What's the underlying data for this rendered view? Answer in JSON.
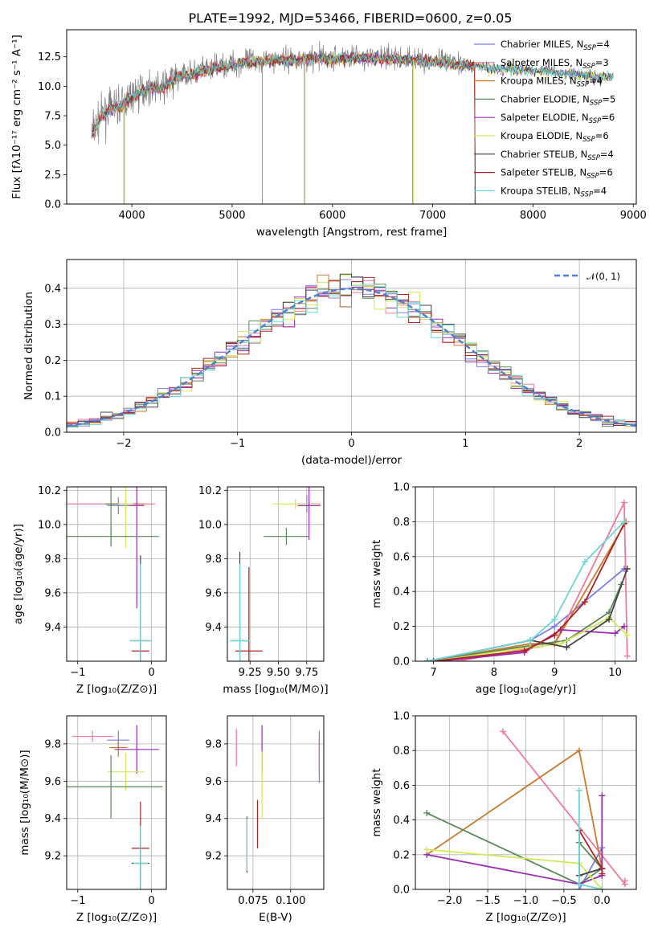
{
  "figure_title": "PLATE=1992, MJD=53466, FIBERID=0600, z=0.05",
  "colors": {
    "chabrier_miles": "#7b7ee6",
    "salpeter_miles": "#f07a9c",
    "kroupa_miles": "#c97b2f",
    "chabrier_elodie": "#5a8a5a",
    "salpeter_elodie": "#9b2bb5",
    "kroupa_elodie": "#d4e85a",
    "chabrier_stelib": "#444444",
    "salpeter_stelib": "#b22222",
    "kroupa_stelib": "#6fd6d6",
    "data": "#808080",
    "normal": "#4f7fd0"
  },
  "chart_data": [
    {
      "id": "spectrum",
      "type": "line",
      "xlabel": "wavelength [Angstrom, rest frame]",
      "ylabel": "Flux [fλ10⁻¹⁷ erg cm⁻² s⁻¹ A⁻¹]",
      "xlim": [
        3350,
        9030
      ],
      "ylim": [
        0,
        14.8
      ],
      "xticks": [
        "4000",
        "5000",
        "6000",
        "7000",
        "8000",
        "9000"
      ],
      "yticks": [
        "0.0",
        "2.5",
        "5.0",
        "7.5",
        "10.0",
        "12.5"
      ],
      "grid": false,
      "legend_position": "upper-right",
      "legend": [
        {
          "name": "Chabrier MILES, N",
          "sub": "SSP",
          "tail": "=4",
          "color_key": "chabrier_miles"
        },
        {
          "name": "Salpeter MILES, N",
          "sub": "SSP",
          "tail": "=3",
          "color_key": "salpeter_miles"
        },
        {
          "name": "Kroupa MILES, N",
          "sub": "SSP",
          "tail": "=4",
          "color_key": "kroupa_miles"
        },
        {
          "name": "Chabrier ELODIE, N",
          "sub": "SSP",
          "tail": "=5",
          "color_key": "chabrier_elodie"
        },
        {
          "name": "Salpeter ELODIE, N",
          "sub": "SSP",
          "tail": "=6",
          "color_key": "salpeter_elodie"
        },
        {
          "name": "Kroupa ELODIE, N",
          "sub": "SSP",
          "tail": "=6",
          "color_key": "kroupa_elodie"
        },
        {
          "name": "Chabrier STELIB, N",
          "sub": "SSP",
          "tail": "=4",
          "color_key": "chabrier_stelib"
        },
        {
          "name": "Salpeter STELIB, N",
          "sub": "SSP",
          "tail": "=6",
          "color_key": "salpeter_stelib"
        },
        {
          "name": "Kroupa STELIB, N",
          "sub": "SSP",
          "tail": "=4",
          "color_key": "kroupa_stelib"
        }
      ],
      "data_continuum": [
        [
          3600,
          6.0
        ],
        [
          3700,
          7.6
        ],
        [
          3800,
          8.2
        ],
        [
          3900,
          8.5
        ],
        [
          4000,
          9.2
        ],
        [
          4100,
          9.7
        ],
        [
          4200,
          10.0
        ],
        [
          4300,
          9.9
        ],
        [
          4400,
          10.5
        ],
        [
          4500,
          11.0
        ],
        [
          4600,
          11.1
        ],
        [
          4800,
          11.6
        ],
        [
          5000,
          11.9
        ],
        [
          5200,
          12.2
        ],
        [
          5400,
          12.3
        ],
        [
          5600,
          12.3
        ],
        [
          5800,
          12.4
        ],
        [
          6000,
          12.4
        ],
        [
          6200,
          12.5
        ],
        [
          6400,
          12.5
        ],
        [
          6600,
          12.4
        ],
        [
          6800,
          12.3
        ],
        [
          7000,
          12.2
        ],
        [
          7200,
          12.0
        ],
        [
          7400,
          11.8
        ],
        [
          7600,
          11.6
        ],
        [
          7800,
          11.5
        ],
        [
          8000,
          11.4
        ],
        [
          8200,
          11.3
        ],
        [
          8400,
          11.1
        ],
        [
          8600,
          10.9
        ],
        [
          8800,
          10.8
        ]
      ],
      "models_end_near": [
        7420,
        8800
      ],
      "absorption_spikes": [
        [
          3920,
          0.0
        ],
        [
          5300,
          0.0
        ],
        [
          5720,
          0.0
        ],
        [
          6800,
          0.0
        ],
        [
          7420,
          0.0
        ]
      ]
    },
    {
      "id": "residuals",
      "type": "histogram",
      "xlabel": "(data-model)/error",
      "ylabel": "Normed distribution",
      "xlim": [
        -2.5,
        2.5
      ],
      "ylim": [
        0,
        0.48
      ],
      "xticks": [
        "−2",
        "−1",
        "0",
        "1",
        "2"
      ],
      "yticks": [
        "0.0",
        "0.1",
        "0.2",
        "0.3",
        "0.4"
      ],
      "grid": true,
      "legend_position": "upper-right",
      "normal_label": "𝒩(0, 1)",
      "bin_edges_start": -2.5,
      "bin_width": 0.1,
      "normal_curve": {
        "mu": 0,
        "sigma": 1
      }
    },
    {
      "id": "age_vs_Z",
      "type": "errorbar",
      "xlabel": "Z [log₁₀(Z/Z⊙)]",
      "ylabel": "age  [log₁₀(age/yr)]",
      "xlim": [
        -1.15,
        0.2
      ],
      "ylim": [
        9.2,
        10.22
      ],
      "xticks": [
        "−1",
        "0"
      ],
      "xtick_values": [
        -1,
        0
      ],
      "yticks": [
        "9.4",
        "9.6",
        "9.8",
        "10.0",
        "10.2"
      ],
      "ytick_values": [
        9.4,
        9.6,
        9.8,
        10.0,
        10.2
      ],
      "grid": true,
      "points": [
        {
          "x": -0.55,
          "y": 10.12,
          "xerr": 0.6,
          "yerr": 0.02,
          "color_key": "salpeter_miles"
        },
        {
          "x": -0.45,
          "y": 10.11,
          "xerr": 0.15,
          "yerr": 0.05,
          "color_key": "chabrier_miles"
        },
        {
          "x": -0.35,
          "y": 10.12,
          "xerr": 0.25,
          "yerr": 0.03,
          "color_key": "kroupa_miles"
        },
        {
          "x": -0.55,
          "y": 10.12,
          "xerr": 0.08,
          "yerr": 0.25,
          "color_key": "chabrier_elodie"
        },
        {
          "x": -0.35,
          "y": 10.12,
          "xerr": 0.1,
          "yerr": 0.26,
          "color_key": "kroupa_elodie"
        },
        {
          "x": -0.2,
          "y": 10.11,
          "xerr": 0.1,
          "yerr": 0.6,
          "color_key": "salpeter_elodie"
        },
        {
          "x": -0.55,
          "y": 9.93,
          "xerr": 0.65,
          "yerr": 0.05,
          "color_key": "chabrier_elodie"
        },
        {
          "x": -0.15,
          "y": 9.32,
          "xerr": 0.13,
          "yerr": 0.5,
          "color_key": "chabrier_stelib"
        },
        {
          "x": -0.15,
          "y": 9.26,
          "xerr": 0.12,
          "yerr": 0.05,
          "color_key": "salpeter_stelib"
        },
        {
          "x": -0.15,
          "y": 9.32,
          "xerr": 0.15,
          "yerr": 0.45,
          "color_key": "kroupa_stelib"
        }
      ]
    },
    {
      "id": "age_vs_mass",
      "type": "errorbar",
      "xlabel": "mass [log₁₀(M/M⊙)]",
      "ylabel": "",
      "xlim": [
        9.05,
        9.9
      ],
      "ylim": [
        9.2,
        10.22
      ],
      "xticks": [
        "9.25",
        "9.50",
        "9.75"
      ],
      "xtick_values": [
        9.25,
        9.5,
        9.75
      ],
      "yticks": [
        "9.4",
        "9.6",
        "9.8",
        "10.0",
        "10.2"
      ],
      "ytick_values": [
        9.4,
        9.6,
        9.8,
        10.0,
        10.2
      ],
      "grid": true,
      "points": [
        {
          "x": 9.77,
          "y": 10.12,
          "xerr": 0.1,
          "yerr": 0.03,
          "color_key": "salpeter_miles"
        },
        {
          "x": 9.75,
          "y": 10.12,
          "xerr": 0.08,
          "yerr": 0.05,
          "color_key": "chabrier_miles"
        },
        {
          "x": 9.65,
          "y": 10.12,
          "xerr": 0.2,
          "yerr": 0.03,
          "color_key": "kroupa_elodie"
        },
        {
          "x": 9.77,
          "y": 10.11,
          "xerr": 0.1,
          "yerr": 0.2,
          "color_key": "salpeter_elodie"
        },
        {
          "x": 9.57,
          "y": 9.93,
          "xerr": 0.2,
          "yerr": 0.05,
          "color_key": "chabrier_elodie"
        },
        {
          "x": 9.16,
          "y": 9.32,
          "xerr": 0.08,
          "yerr": 0.52,
          "color_key": "chabrier_stelib"
        },
        {
          "x": 9.24,
          "y": 9.26,
          "xerr": 0.12,
          "yerr": 0.49,
          "color_key": "salpeter_stelib"
        },
        {
          "x": 9.16,
          "y": 9.32,
          "xerr": 0.09,
          "yerr": 0.45,
          "color_key": "kroupa_stelib"
        }
      ]
    },
    {
      "id": "massweight_vs_age",
      "type": "line",
      "xlabel": "age  [log₁₀(age/yr)]",
      "ylabel": "mass weight",
      "xlim": [
        6.7,
        10.35
      ],
      "ylim": [
        0,
        1.0
      ],
      "xticks": [
        "7",
        "8",
        "9",
        "10"
      ],
      "xtick_values": [
        7,
        8,
        9,
        10
      ],
      "yticks": [
        "0.0",
        "0.2",
        "0.4",
        "0.6",
        "0.8",
        "1.0"
      ],
      "ytick_values": [
        0,
        0.2,
        0.4,
        0.6,
        0.8,
        1.0
      ],
      "grid": true,
      "series": [
        {
          "color_key": "chabrier_miles",
          "x": [
            6.9,
            8.6,
            9.0,
            10.15
          ],
          "y": [
            0.0,
            0.12,
            0.2,
            0.53
          ]
        },
        {
          "color_key": "salpeter_miles",
          "x": [
            7.4,
            9.0,
            10.15,
            10.2
          ],
          "y": [
            0.0,
            0.1,
            0.91,
            0.03
          ]
        },
        {
          "color_key": "kroupa_miles",
          "x": [
            6.9,
            8.6,
            9.0,
            10.18
          ],
          "y": [
            0.0,
            0.1,
            0.1,
            0.8
          ]
        },
        {
          "color_key": "chabrier_elodie",
          "x": [
            6.9,
            8.8,
            9.2,
            9.9,
            10.1
          ],
          "y": [
            0.0,
            0.1,
            0.12,
            0.28,
            0.44
          ]
        },
        {
          "color_key": "salpeter_elodie",
          "x": [
            7.1,
            8.5,
            9.1,
            10.0,
            10.15
          ],
          "y": [
            0.0,
            0.05,
            0.18,
            0.16,
            0.2
          ]
        },
        {
          "color_key": "kroupa_elodie",
          "x": [
            7.0,
            8.6,
            9.1,
            9.9,
            10.2
          ],
          "y": [
            0.0,
            0.08,
            0.1,
            0.25,
            0.15
          ]
        },
        {
          "color_key": "chabrier_stelib",
          "x": [
            6.9,
            8.6,
            9.2,
            9.9,
            10.2
          ],
          "y": [
            0.0,
            0.12,
            0.08,
            0.24,
            0.53
          ]
        },
        {
          "color_key": "salpeter_stelib",
          "x": [
            7.0,
            8.5,
            9.0,
            9.5,
            10.15
          ],
          "y": [
            0.0,
            0.06,
            0.15,
            0.34,
            0.79
          ]
        },
        {
          "color_key": "kroupa_stelib",
          "x": [
            6.9,
            8.6,
            9.0,
            9.5,
            10.15
          ],
          "y": [
            0.0,
            0.12,
            0.24,
            0.57,
            0.8
          ]
        }
      ]
    },
    {
      "id": "mass_vs_Z",
      "type": "errorbar",
      "xlabel": "Z [log₁₀(Z/Z⊙)]",
      "ylabel": "mass [log₁₀(M/M⊙)]",
      "xlim": [
        -1.15,
        0.2
      ],
      "ylim": [
        9.02,
        9.95
      ],
      "xticks": [
        "−1",
        "0"
      ],
      "xtick_values": [
        -1,
        0
      ],
      "yticks": [
        "9.2",
        "9.4",
        "9.6",
        "9.8"
      ],
      "ytick_values": [
        9.2,
        9.4,
        9.6,
        9.8
      ],
      "grid": true,
      "points": [
        {
          "x": -0.8,
          "y": 9.84,
          "xerr": 0.28,
          "yerr": 0.03,
          "color_key": "salpeter_miles"
        },
        {
          "x": -0.45,
          "y": 9.82,
          "xerr": 0.15,
          "yerr": 0.05,
          "color_key": "chabrier_miles"
        },
        {
          "x": -0.45,
          "y": 9.78,
          "xerr": 0.12,
          "yerr": 0.05,
          "color_key": "kroupa_miles"
        },
        {
          "x": -0.2,
          "y": 9.77,
          "xerr": 0.3,
          "yerr": 0.13,
          "color_key": "salpeter_elodie"
        },
        {
          "x": -0.35,
          "y": 9.65,
          "xerr": 0.25,
          "yerr": 0.1,
          "color_key": "kroupa_elodie"
        },
        {
          "x": -0.55,
          "y": 9.57,
          "xerr": 0.7,
          "yerr": 0.17,
          "color_key": "chabrier_elodie"
        },
        {
          "x": -0.15,
          "y": 9.24,
          "xerr": 0.12,
          "yerr": 0.25,
          "color_key": "salpeter_stelib"
        },
        {
          "x": -0.15,
          "y": 9.16,
          "xerr": 0.12,
          "yerr": 0.1,
          "color_key": "chabrier_stelib"
        },
        {
          "x": -0.15,
          "y": 9.16,
          "xerr": 0.1,
          "yerr": 0.2,
          "color_key": "kroupa_stelib"
        }
      ]
    },
    {
      "id": "mass_vs_ebv",
      "type": "errorbar",
      "xlabel": "E(B-V)",
      "ylabel": "",
      "xlim": [
        0.058,
        0.122
      ],
      "ylim": [
        9.02,
        9.95
      ],
      "xticks": [
        "0.075",
        "0.100"
      ],
      "xtick_values": [
        0.075,
        0.1
      ],
      "yticks": [
        "9.2",
        "9.4",
        "9.6",
        "9.8"
      ],
      "ytick_values": [
        9.2,
        9.4,
        9.6,
        9.8
      ],
      "grid": true,
      "points": [
        {
          "x": 0.064,
          "y": 9.78,
          "xerr": 0.0,
          "yerr": 0.1,
          "color_key": "salpeter_miles"
        },
        {
          "x": 0.119,
          "y": 9.73,
          "xerr": 0.0,
          "yerr": 0.14,
          "color_key": "chabrier_miles"
        },
        {
          "x": 0.119,
          "y": 9.73,
          "xerr": 0.0,
          "yerr": 0.1,
          "color_key": "kroupa_miles"
        },
        {
          "x": 0.081,
          "y": 9.77,
          "xerr": 0.0,
          "yerr": 0.13,
          "color_key": "salpeter_elodie"
        },
        {
          "x": 0.081,
          "y": 9.58,
          "xerr": 0.0,
          "yerr": 0.18,
          "color_key": "kroupa_elodie"
        },
        {
          "x": 0.078,
          "y": 9.37,
          "xerr": 0.0,
          "yerr": 0.13,
          "color_key": "salpeter_stelib"
        },
        {
          "x": 0.071,
          "y": 9.26,
          "xerr": 0.0,
          "yerr": 0.15,
          "color_key": "chabrier_stelib"
        },
        {
          "x": 0.071,
          "y": 9.26,
          "xerr": 0.0,
          "yerr": 0.14,
          "color_key": "kroupa_stelib"
        }
      ]
    },
    {
      "id": "massweight_vs_Z",
      "type": "line",
      "xlabel": "Z [log₁₀(Z/Z⊙)]",
      "ylabel": "mass weight",
      "xlim": [
        -2.45,
        0.45
      ],
      "ylim": [
        0,
        1.0
      ],
      "xticks": [
        "−2.0",
        "−1.5",
        "−1.0",
        "−0.5",
        "0.0"
      ],
      "xtick_values": [
        -2,
        -1.5,
        -1,
        -0.5,
        0
      ],
      "yticks": [
        "0.0",
        "0.2",
        "0.4",
        "0.6",
        "0.8",
        "1.0"
      ],
      "ytick_values": [
        0,
        0.2,
        0.4,
        0.6,
        0.8,
        1.0
      ],
      "grid": true,
      "series": [
        {
          "color_key": "chabrier_miles",
          "x": [
            -0.3,
            0.0,
            0.0,
            -0.3
          ],
          "y": [
            0.0,
            0.24,
            0.12,
            0.08
          ]
        },
        {
          "color_key": "salpeter_miles",
          "x": [
            -1.3,
            0.3,
            0.3
          ],
          "y": [
            0.91,
            0.03,
            0.05
          ]
        },
        {
          "color_key": "kroupa_miles",
          "x": [
            -2.3,
            -0.3,
            0.0
          ],
          "y": [
            0.2,
            0.8,
            0.12
          ]
        },
        {
          "color_key": "chabrier_elodie",
          "x": [
            -2.3,
            -0.3,
            0.0,
            -0.3
          ],
          "y": [
            0.44,
            0.03,
            0.12,
            0.27
          ]
        },
        {
          "color_key": "salpeter_elodie",
          "x": [
            -2.3,
            -0.3,
            0.0,
            0.0
          ],
          "y": [
            0.2,
            0.03,
            0.08,
            0.54
          ]
        },
        {
          "color_key": "kroupa_elodie",
          "x": [
            -2.3,
            -0.3,
            0.0
          ],
          "y": [
            0.23,
            0.15,
            0.0
          ]
        },
        {
          "color_key": "chabrier_stelib",
          "x": [
            -0.3,
            -0.3,
            0.0
          ],
          "y": [
            0.34,
            0.08,
            0.12
          ]
        },
        {
          "color_key": "salpeter_stelib",
          "x": [
            -0.3,
            0.0,
            0.0
          ],
          "y": [
            0.34,
            0.12,
            0.09
          ]
        },
        {
          "color_key": "kroupa_stelib",
          "x": [
            -0.3,
            -0.3,
            0.0
          ],
          "y": [
            0.57,
            0.03,
            0.0
          ]
        }
      ]
    }
  ]
}
